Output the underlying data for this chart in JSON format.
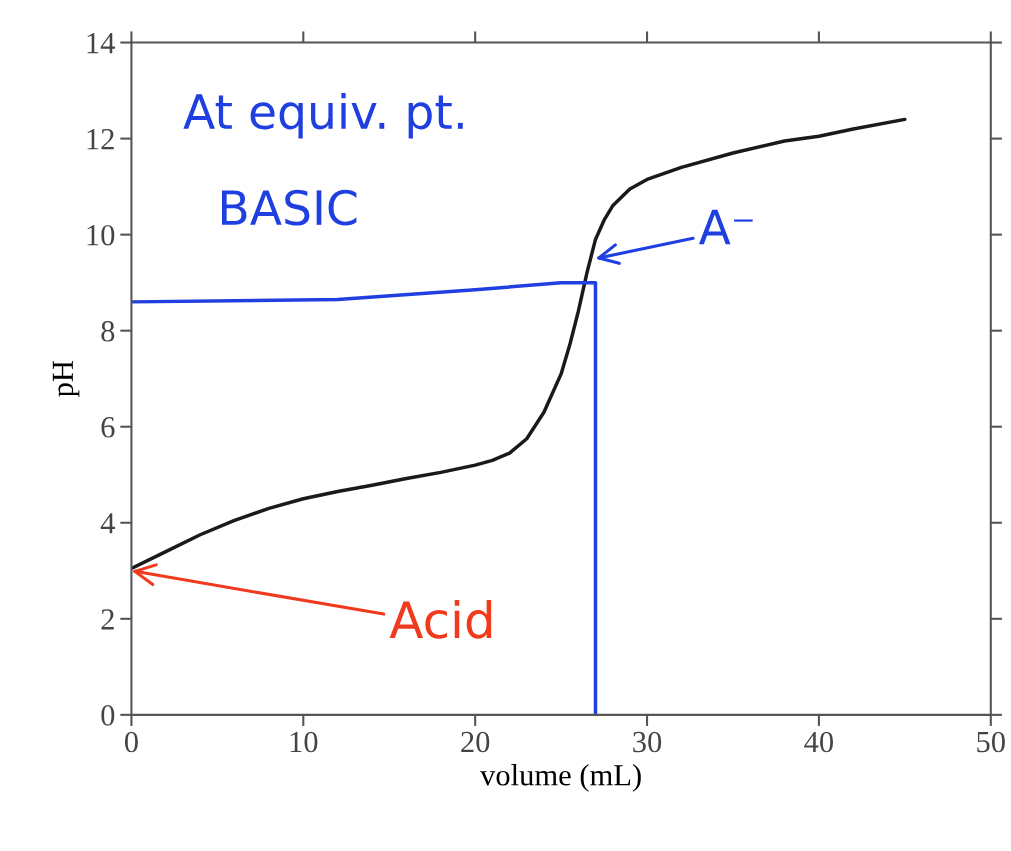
{
  "chart_data": {
    "type": "line",
    "xlabel": "volume (mL)",
    "ylabel": "pH",
    "xlim": [
      0,
      50
    ],
    "ylim": [
      0,
      14
    ],
    "xticks": [
      0,
      10,
      20,
      30,
      40,
      50
    ],
    "yticks": [
      0,
      2,
      4,
      6,
      8,
      10,
      12,
      14
    ],
    "grid": false,
    "legend": false,
    "series": [
      {
        "color": "#1a1a1a",
        "x": [
          0,
          2,
          4,
          6,
          8,
          10,
          12,
          14,
          16,
          18,
          20,
          21,
          22,
          23,
          24,
          25,
          25.5,
          26,
          26.5,
          27,
          27.5,
          28,
          29,
          30,
          32,
          35,
          38,
          40,
          42,
          45
        ],
        "values": [
          3.05,
          3.4,
          3.75,
          4.05,
          4.3,
          4.5,
          4.65,
          4.78,
          4.92,
          5.05,
          5.2,
          5.3,
          5.45,
          5.75,
          6.3,
          7.1,
          7.7,
          8.4,
          9.2,
          9.9,
          10.3,
          10.6,
          10.95,
          11.15,
          11.4,
          11.7,
          11.95,
          12.05,
          12.2,
          12.4
        ]
      },
      {
        "color": "#1f3fe0",
        "x": [
          0,
          12,
          20,
          25,
          27,
          27
        ],
        "values": [
          8.6,
          8.65,
          8.85,
          9.0,
          9.0,
          0
        ]
      }
    ],
    "annotations": [
      "At equiv. pt.",
      "BASIC",
      {
        "text": "A⁻",
        "x": 27,
        "y": 9.5
      },
      {
        "text": "Acid",
        "x": 0,
        "y": 3.0
      }
    ]
  }
}
